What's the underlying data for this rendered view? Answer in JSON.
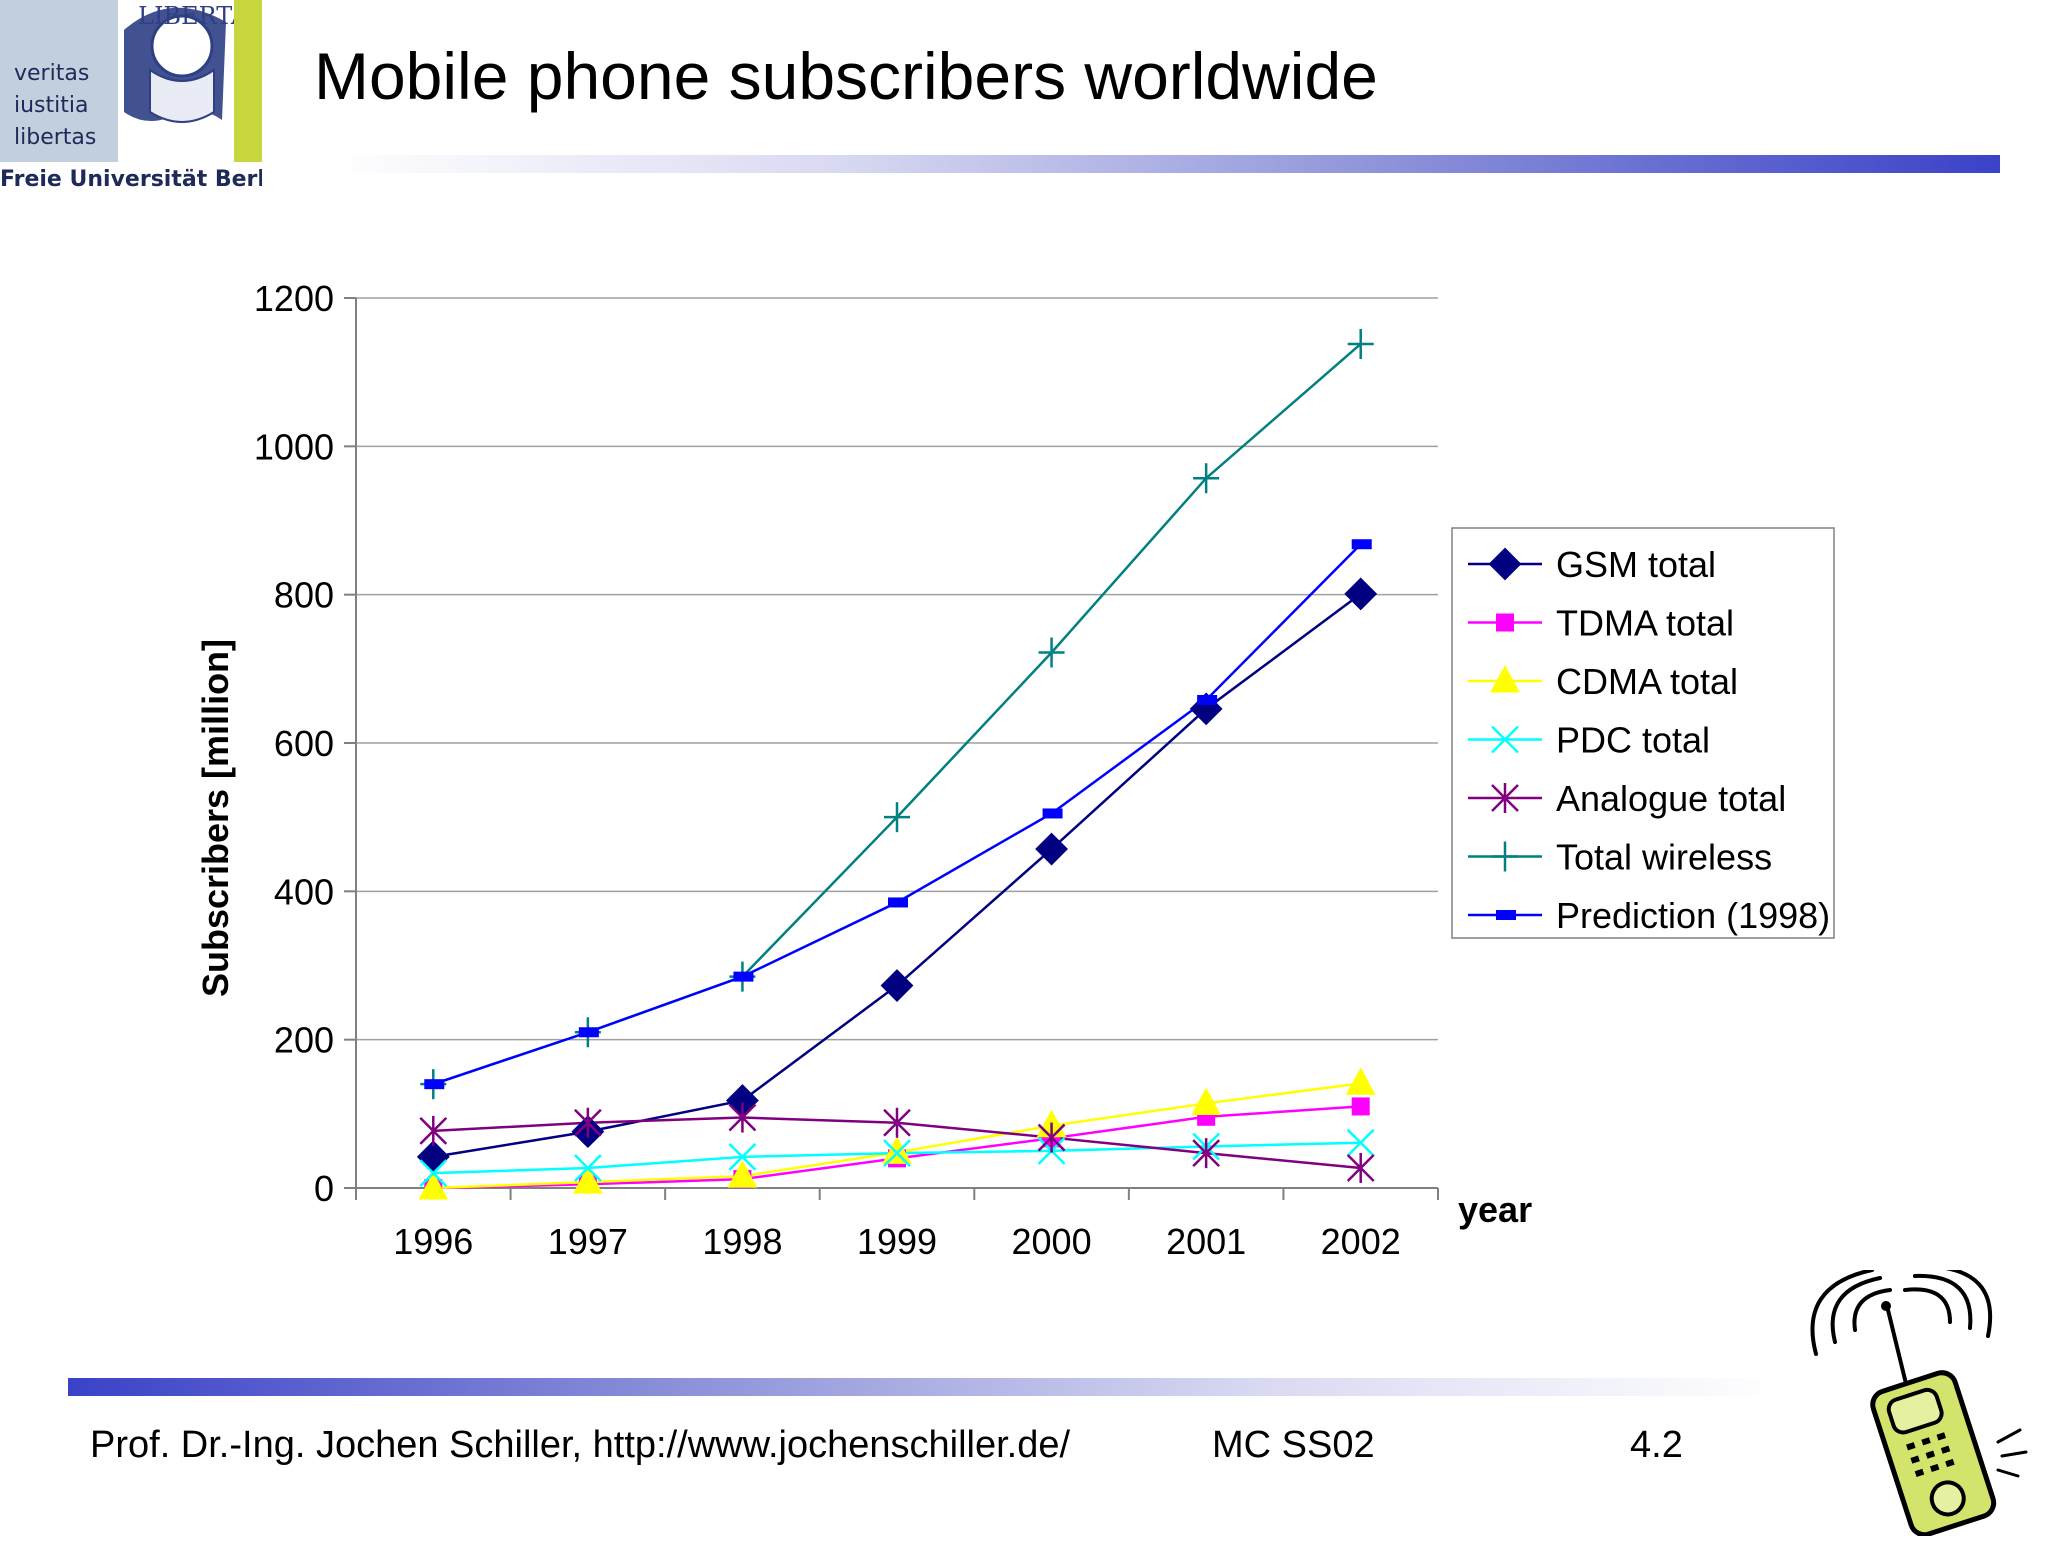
{
  "slide": {
    "title": "Mobile phone subscribers worldwide",
    "footer": {
      "author": "Prof. Dr.-Ing. Jochen Schiller, http://www.jochenschiller.de/",
      "course": "MC SS02",
      "page": "4.2"
    },
    "logo": {
      "motto": [
        "veritas",
        "iustitia",
        "libertas"
      ],
      "university": "Freie Universität Berlin",
      "seal_text": "LIBERTAS"
    }
  },
  "colors": {
    "title_rule_end": "#3a42c8",
    "grid": "#a0a0a0"
  },
  "chart_data": {
    "type": "line",
    "title": "",
    "xlabel": "year",
    "ylabel": "Subscribers [million]",
    "categories": [
      "1996",
      "1997",
      "1998",
      "1999",
      "2000",
      "2001",
      "2002"
    ],
    "ylim": [
      0,
      1200
    ],
    "yticks": [
      0,
      200,
      400,
      600,
      800,
      1000,
      1200
    ],
    "grid": true,
    "legend_position": "right",
    "series": [
      {
        "name": "GSM total",
        "marker": "diamond",
        "color": "#000080",
        "values": [
          42,
          76,
          118,
          273,
          457,
          646,
          801
        ]
      },
      {
        "name": "TDMA total",
        "marker": "square",
        "color": "#ff00ff",
        "values": [
          0,
          5,
          12,
          40,
          67,
          96,
          110
        ]
      },
      {
        "name": "CDMA total",
        "marker": "triangle",
        "color": "#ffff00",
        "values": [
          0,
          8,
          16,
          48,
          84,
          114,
          141
        ]
      },
      {
        "name": "PDC total",
        "marker": "x",
        "color": "#00ffff",
        "values": [
          20,
          27,
          42,
          47,
          50,
          56,
          61
        ]
      },
      {
        "name": "Analogue total",
        "marker": "asterisk",
        "color": "#800080",
        "values": [
          77,
          88,
          95,
          88,
          68,
          47,
          27
        ]
      },
      {
        "name": "Total wireless",
        "marker": "plus",
        "color": "#008080",
        "values": [
          140,
          210,
          285,
          500,
          722,
          957,
          1138
        ]
      },
      {
        "name": "Prediction (1998)",
        "marker": "dash",
        "color": "#0000ff",
        "values": [
          140,
          210,
          285,
          385,
          505,
          658,
          868
        ]
      }
    ]
  }
}
